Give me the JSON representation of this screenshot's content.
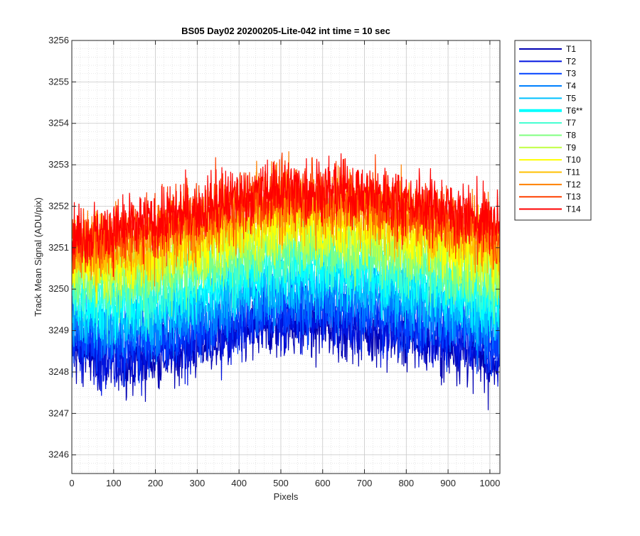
{
  "chart_data": {
    "type": "line",
    "title": "BS05 Day02 20200205-Lite-042 int time = 10 sec",
    "xlabel": "Pixels",
    "ylabel": "Track Mean Signal (ADU/pix)",
    "xlim": [
      0,
      1024
    ],
    "ylim": [
      3245.55,
      3256
    ],
    "xticks": [
      "0",
      "100",
      "200",
      "300",
      "400",
      "500",
      "600",
      "700",
      "800",
      "900",
      "1000"
    ],
    "xtick_values": [
      0,
      100,
      200,
      300,
      400,
      500,
      600,
      700,
      800,
      900,
      1000
    ],
    "yticks": [
      "3246",
      "3247",
      "3248",
      "3249",
      "3250",
      "3251",
      "3252",
      "3253",
      "3254",
      "3255",
      "3256"
    ],
    "ytick_values": [
      3246,
      3247,
      3248,
      3249,
      3250,
      3251,
      3252,
      3253,
      3254,
      3255,
      3256
    ],
    "grid": true,
    "minor_grid": true,
    "legend_position": "outside-top-right",
    "series_note_values": "each trace has 1024 points; the baseline curve is listed below, per-pixel noise is drawn around it",
    "x_profile": [
      0,
      100,
      200,
      300,
      400,
      500,
      600,
      700,
      800,
      900,
      1000,
      1023
    ],
    "series": [
      {
        "name": "T1",
        "color": "#0000b3",
        "baseline": [
          3248.5,
          3248.2,
          3248.3,
          3248.6,
          3248.9,
          3249.1,
          3249.1,
          3249.0,
          3248.8,
          3248.6,
          3248.3,
          3248.2
        ],
        "noise": 1.0
      },
      {
        "name": "T2",
        "color": "#0014e0",
        "baseline": [
          3248.7,
          3248.4,
          3248.5,
          3248.8,
          3249.1,
          3249.3,
          3249.3,
          3249.2,
          3249.0,
          3248.8,
          3248.5,
          3248.4
        ],
        "noise": 1.0
      },
      {
        "name": "T3",
        "color": "#0040ff",
        "baseline": [
          3248.9,
          3248.7,
          3248.8,
          3249.1,
          3249.4,
          3249.6,
          3249.6,
          3249.5,
          3249.3,
          3249.1,
          3248.8,
          3248.7
        ],
        "noise": 1.0
      },
      {
        "name": "T4",
        "color": "#0080ff",
        "baseline": [
          3249.2,
          3249.0,
          3249.1,
          3249.4,
          3249.7,
          3249.9,
          3249.9,
          3249.8,
          3249.6,
          3249.4,
          3249.1,
          3249.0
        ],
        "noise": 1.0
      },
      {
        "name": "T5",
        "color": "#00c0ff",
        "baseline": [
          3249.5,
          3249.3,
          3249.4,
          3249.7,
          3250.0,
          3250.2,
          3250.2,
          3250.1,
          3249.9,
          3249.7,
          3249.4,
          3249.3
        ],
        "noise": 1.0
      },
      {
        "name": "T6**",
        "color": "#00ffff",
        "baseline": [
          3249.8,
          3249.6,
          3249.7,
          3250.0,
          3250.3,
          3250.5,
          3250.5,
          3250.4,
          3250.2,
          3250.0,
          3249.7,
          3249.6
        ],
        "noise": 1.0,
        "highlight": true
      },
      {
        "name": "T7",
        "color": "#40ffd0",
        "baseline": [
          3250.0,
          3249.9,
          3250.0,
          3250.3,
          3250.6,
          3250.8,
          3250.8,
          3250.7,
          3250.5,
          3250.3,
          3250.0,
          3249.9
        ],
        "noise": 1.0
      },
      {
        "name": "T8",
        "color": "#80ff80",
        "baseline": [
          3250.3,
          3250.2,
          3250.3,
          3250.6,
          3250.9,
          3251.1,
          3251.1,
          3251.0,
          3250.8,
          3250.6,
          3250.3,
          3250.2
        ],
        "noise": 1.0
      },
      {
        "name": "T9",
        "color": "#c0ff40",
        "baseline": [
          3250.5,
          3250.5,
          3250.6,
          3250.9,
          3251.2,
          3251.4,
          3251.4,
          3251.3,
          3251.1,
          3250.9,
          3250.6,
          3250.5
        ],
        "noise": 1.0
      },
      {
        "name": "T10",
        "color": "#ffff00",
        "baseline": [
          3250.7,
          3250.7,
          3250.8,
          3251.1,
          3251.4,
          3251.6,
          3251.6,
          3251.5,
          3251.3,
          3251.1,
          3250.8,
          3250.7
        ],
        "noise": 1.0
      },
      {
        "name": "T11",
        "color": "#ffc000",
        "baseline": [
          3250.9,
          3250.9,
          3251.1,
          3251.4,
          3251.7,
          3251.9,
          3251.9,
          3251.8,
          3251.6,
          3251.4,
          3251.1,
          3251.0
        ],
        "noise": 1.0
      },
      {
        "name": "T12",
        "color": "#ff8000",
        "baseline": [
          3251.1,
          3251.1,
          3251.3,
          3251.6,
          3251.9,
          3252.1,
          3252.1,
          3252.0,
          3251.8,
          3251.6,
          3251.3,
          3251.2
        ],
        "noise": 1.0
      },
      {
        "name": "T13",
        "color": "#ff4000",
        "baseline": [
          3251.2,
          3251.3,
          3251.5,
          3251.8,
          3252.1,
          3252.3,
          3252.3,
          3252.2,
          3252.0,
          3251.8,
          3251.5,
          3251.4
        ],
        "noise": 1.0
      },
      {
        "name": "T14",
        "color": "#ff0000",
        "baseline": [
          3251.3,
          3251.4,
          3251.6,
          3251.9,
          3252.2,
          3252.4,
          3252.4,
          3252.3,
          3252.1,
          3251.9,
          3251.6,
          3251.5
        ],
        "noise": 1.0
      }
    ]
  }
}
